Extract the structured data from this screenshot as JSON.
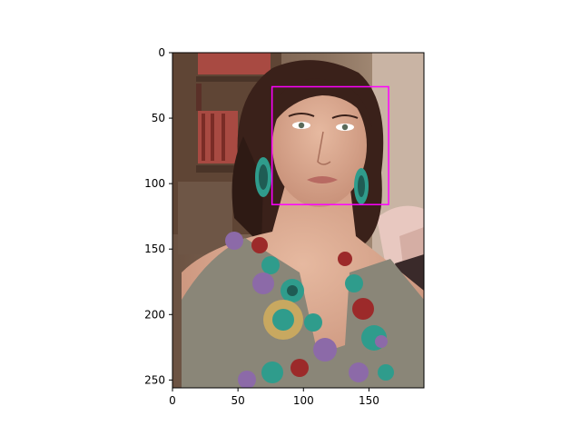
{
  "chart_data": {
    "type": "image",
    "image_size": [
      192,
      256
    ],
    "xlim": [
      0,
      192
    ],
    "ylim": [
      256,
      0
    ],
    "x_ticks": [
      0,
      50,
      100,
      150
    ],
    "x_tick_labels": [
      "0",
      "50",
      "100",
      "150"
    ],
    "y_ticks": [
      0,
      50,
      100,
      150,
      200,
      250
    ],
    "y_tick_labels": [
      "0",
      "50",
      "100",
      "150",
      "200",
      "250"
    ],
    "bounding_box": {
      "x_min": 76,
      "y_min": 26,
      "x_max": 165,
      "y_max": 116,
      "color": "#ff00ff"
    },
    "grid": false,
    "title": "",
    "xlabel": "",
    "ylabel": ""
  },
  "colors": {
    "background_bookshelf": "#7a5f4c",
    "book_spines": "#a84a42",
    "hair": "#3a211a",
    "skin": "#d8a890",
    "dress": "#8a8678",
    "gem_teal": "#2f9c8c",
    "gem_purple": "#8c6aa8",
    "gem_red": "#9c2a2a",
    "clothes_rack_pink": "#e8c8c0",
    "clothes_rack_blue": "#2c8ac8"
  },
  "icons": {
    "photo": "portrait-photo-icon"
  }
}
